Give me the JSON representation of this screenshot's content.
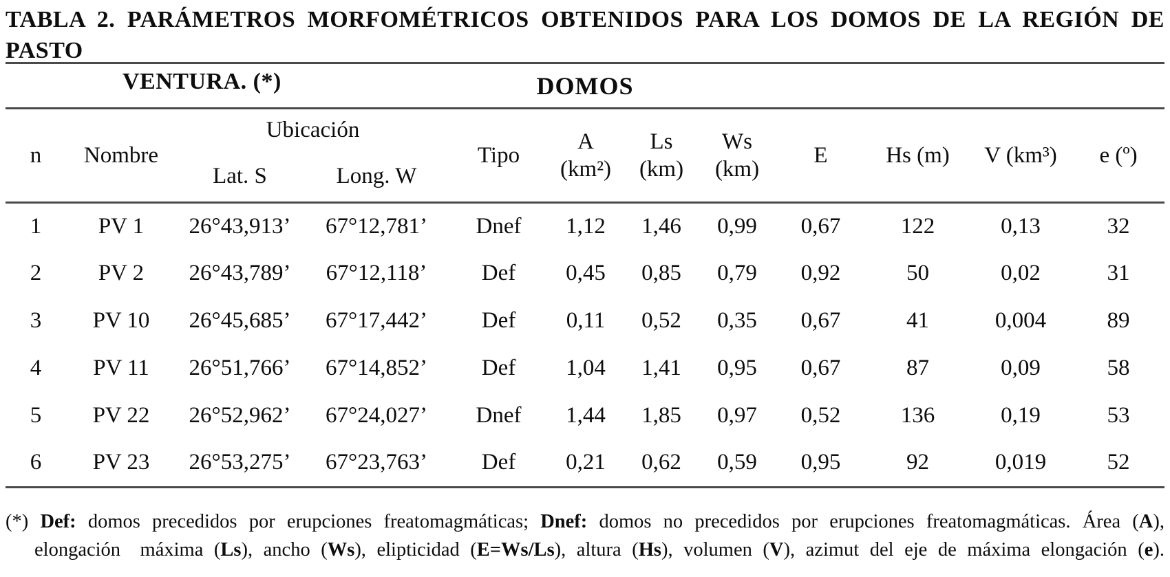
{
  "title": {
    "line1": "TABLA 2. PARÁMETROS MORFOMÉTRICOS OBTENIDOS PARA LOS DOMOS DE LA REGIÓN DE PASTO",
    "line2": "VENTURA. (*)"
  },
  "table": {
    "group_header": "DOMOS",
    "header": {
      "n": "n",
      "nombre": "Nombre",
      "ubicacion": "Ubicación",
      "lat": "Lat. S",
      "long": "Long. W",
      "tipo": "Tipo",
      "a_line1": "A",
      "a_line2": "(km²)",
      "ls_line1": "Ls",
      "ls_line2": "(km)",
      "ws_line1": "Ws",
      "ws_line2": "(km)",
      "e": "E",
      "hs": "Hs (m)",
      "v": "V (km³)",
      "e_azimut": "e (º)"
    },
    "rows": [
      [
        "1",
        "PV 1",
        "26°43,913’",
        "67°12,781’",
        "Dnef",
        "1,12",
        "1,46",
        "0,99",
        "0,67",
        "122",
        "0,13",
        "32"
      ],
      [
        "2",
        "PV 2",
        "26°43,789’",
        "67°12,118’",
        "Def",
        "0,45",
        "0,85",
        "0,79",
        "0,92",
        "50",
        "0,02",
        "31"
      ],
      [
        "3",
        "PV 10",
        "26°45,685’",
        "67°17,442’",
        "Def",
        "0,11",
        "0,52",
        "0,35",
        "0,67",
        "41",
        "0,004",
        "89"
      ],
      [
        "4",
        "PV 11",
        "26°51,766’",
        "67°14,852’",
        "Def",
        "1,04",
        "1,41",
        "0,95",
        "0,67",
        "87",
        "0,09",
        "58"
      ],
      [
        "5",
        "PV 22",
        "26°52,962’",
        "67°24,027’",
        "Dnef",
        "1,44",
        "1,85",
        "0,97",
        "0,52",
        "136",
        "0,19",
        "53"
      ],
      [
        "6",
        "PV 23",
        "26°53,275’",
        "67°23,763’",
        "Def",
        "0,21",
        "0,62",
        "0,59",
        "0,95",
        "92",
        "0,019",
        "52"
      ]
    ]
  },
  "footnote": {
    "line1": [
      {
        "t": "(*) ",
        "b": 0
      },
      {
        "t": "Def:",
        "b": 1
      },
      {
        "t": " domos precedidos por erupciones freatomagmáticas; ",
        "b": 0
      },
      {
        "t": "Dnef:",
        "b": 1
      },
      {
        "t": " domos no precedidos por erupciones freatomagmáticas. Área (",
        "b": 0
      },
      {
        "t": "A",
        "b": 1
      },
      {
        "t": "),",
        "b": 0
      }
    ],
    "line2": [
      {
        "t": "elongación máxima (",
        "b": 0
      },
      {
        "t": "Ls",
        "b": 1
      },
      {
        "t": "), ancho (",
        "b": 0
      },
      {
        "t": "Ws",
        "b": 1
      },
      {
        "t": "), elipticidad (",
        "b": 0
      },
      {
        "t": "E=Ws/Ls",
        "b": 1
      },
      {
        "t": "), altura (",
        "b": 0
      },
      {
        "t": "Hs",
        "b": 1
      },
      {
        "t": "), volumen (",
        "b": 0
      },
      {
        "t": "V",
        "b": 1
      },
      {
        "t": "), azimut del eje de máxima elongación (",
        "b": 0
      },
      {
        "t": "e",
        "b": 1
      },
      {
        "t": ").",
        "b": 0
      }
    ]
  },
  "colors": {
    "text": "#0d0d0d",
    "rule": "#4a4a4a",
    "background": "#ffffff"
  }
}
